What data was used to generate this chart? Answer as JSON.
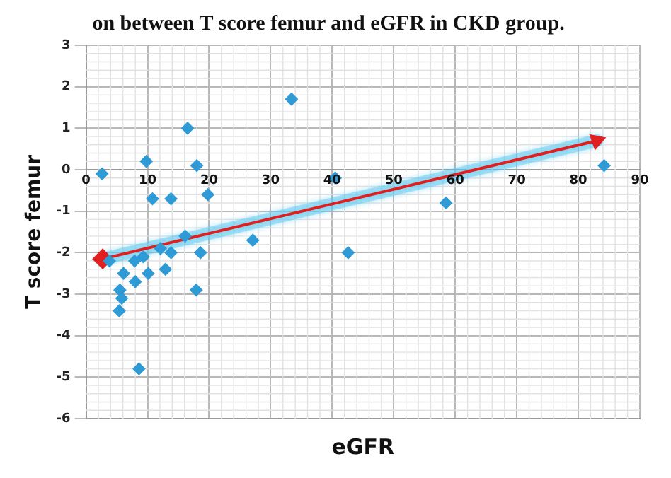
{
  "chart_data": {
    "type": "scatter",
    "title": "on between T score femur and eGFR in CKD group.",
    "xlabel": "eGFR",
    "ylabel": "T score femur",
    "xlim": [
      0,
      90
    ],
    "xticks": [
      0,
      10,
      20,
      30,
      40,
      50,
      60,
      70,
      80,
      90
    ],
    "ylim": [
      -6,
      3
    ],
    "yticks": [
      -6,
      -5,
      -4,
      -3,
      -2,
      -1,
      0,
      1,
      2,
      3
    ],
    "grid": true,
    "legend": false,
    "marker": "diamond",
    "series": [
      {
        "color": "#2e9bd6",
        "x": [
          2.6,
          9.8,
          16.5,
          18.0,
          19.8,
          10.8,
          13.8,
          33.4,
          16.1,
          12.1,
          13.8,
          18.6,
          27.1,
          7.9,
          9.3,
          3.8,
          6.1,
          10.1,
          8.0,
          12.9,
          5.5,
          5.8,
          5.4,
          17.9,
          8.6,
          40.5,
          42.6,
          58.5,
          84.2
        ],
        "values": [
          -0.1,
          0.2,
          1.0,
          0.1,
          -0.6,
          -0.7,
          -0.7,
          1.7,
          -1.6,
          -1.9,
          -2.0,
          -2.0,
          -1.7,
          -2.2,
          -2.1,
          -2.2,
          -2.5,
          -2.5,
          -2.7,
          -2.4,
          -2.9,
          -3.1,
          -3.4,
          -2.9,
          -4.8,
          -0.2,
          -2.0,
          -0.8,
          0.1
        ]
      },
      {
        "type": "line",
        "color": "#e02020",
        "x": [
          2.7,
          83
        ],
        "values": [
          -2.15,
          0.7
        ]
      }
    ]
  }
}
